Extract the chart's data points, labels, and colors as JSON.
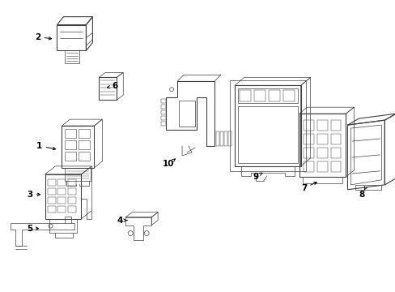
{
  "bg_color": "#ffffff",
  "line_color": "#404040",
  "label_color": "#000000",
  "fig_width": 4.89,
  "fig_height": 3.6,
  "dpi": 100,
  "lw": 0.8,
  "lw_thin": 0.5,
  "label_fontsize": 7.5
}
